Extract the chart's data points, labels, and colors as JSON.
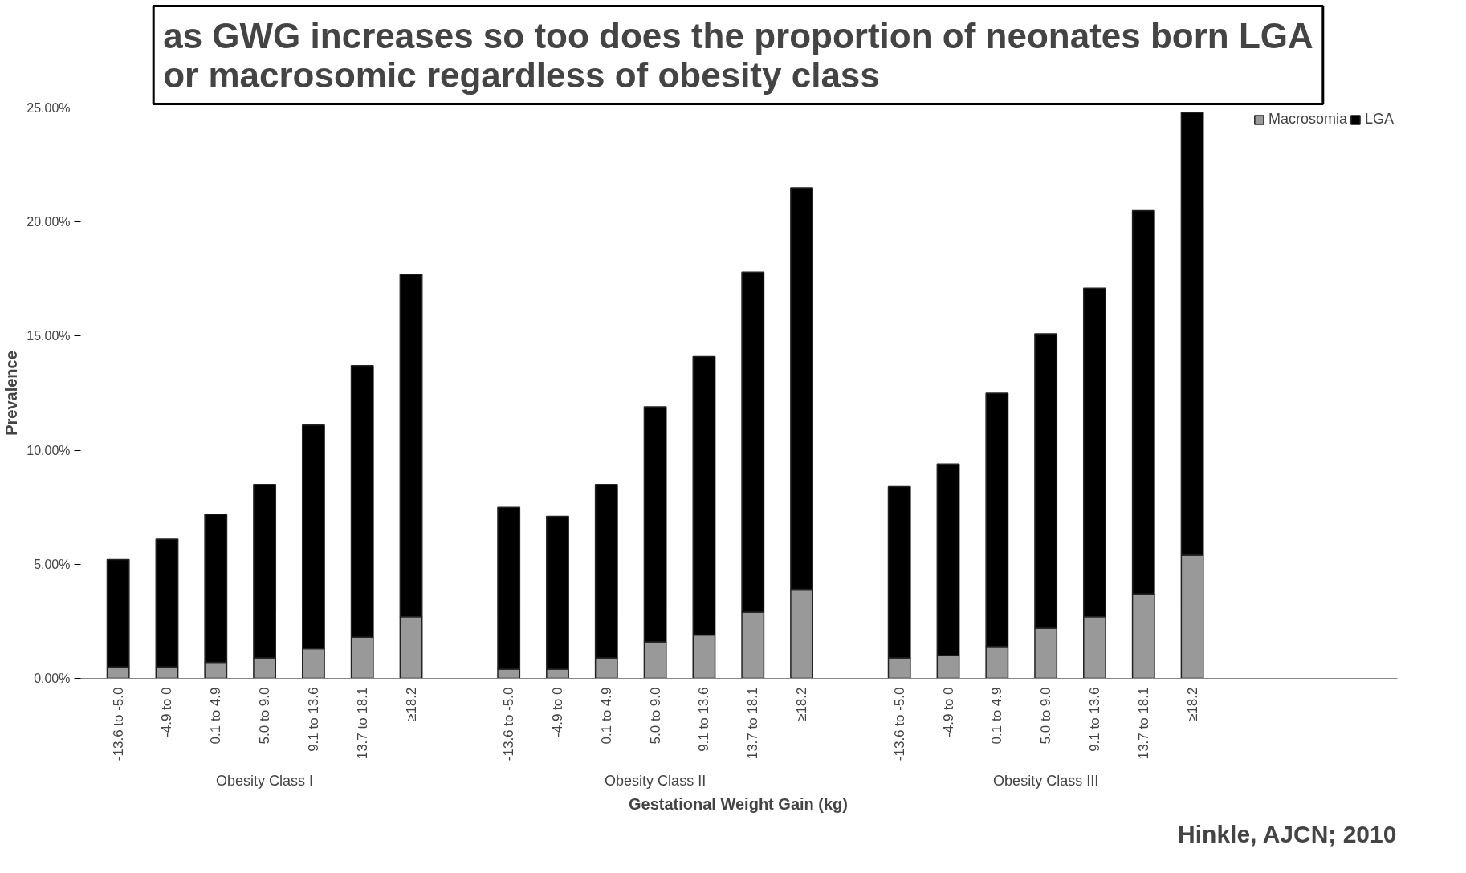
{
  "chart_data": {
    "type": "bar",
    "stacked": true,
    "title": "as GWG increases so too does the proportion of neonates born LGA\nor macrosomic regardless of obesity class",
    "xlabel": "Gestational Weight Gain (kg)",
    "ylabel": "Prevalence",
    "categories": [
      "-13.6 to -5.0",
      "-4.9 to 0",
      "0.1 to 4.9",
      "5.0 to 9.0",
      "9.1 to 13.6",
      "13.7 to 18.1",
      "≥18.2",
      null,
      "-13.6 to -5.0",
      "-4.9 to 0",
      "0.1 to 4.9",
      "5.0 to 9.0",
      "9.1 to 13.6",
      "13.7 to 18.1",
      "≥18.2",
      null,
      "-13.6 to -5.0",
      "-4.9 to 0",
      "0.1 to 4.9",
      "5.0 to 9.0",
      "9.1 to 13.6",
      "13.7 to 18.1",
      "≥18.2"
    ],
    "series": [
      {
        "name": "Macrosomia",
        "color": "#999999",
        "values": [
          0.5,
          0.5,
          0.7,
          0.9,
          1.3,
          1.8,
          2.7,
          null,
          0.4,
          0.4,
          0.9,
          1.6,
          1.9,
          2.9,
          3.9,
          null,
          0.9,
          1.0,
          1.4,
          2.2,
          2.7,
          3.7,
          5.4
        ]
      },
      {
        "name": "LGA",
        "color": "#000000",
        "values": [
          4.7,
          5.6,
          6.5,
          7.6,
          9.8,
          11.9,
          15.0,
          null,
          7.1,
          6.7,
          7.6,
          10.3,
          12.2,
          14.9,
          17.6,
          null,
          7.5,
          8.4,
          11.1,
          12.9,
          14.4,
          16.8,
          19.4
        ]
      }
    ],
    "ylim": [
      0,
      25
    ],
    "yticks": [
      {
        "value": 0,
        "label": "0.00%"
      },
      {
        "value": 5,
        "label": "5.00%"
      },
      {
        "value": 10,
        "label": "10.00%"
      },
      {
        "value": 15,
        "label": "15.00%"
      },
      {
        "value": 20,
        "label": "20.00%"
      },
      {
        "value": 25,
        "label": "25.00%"
      }
    ],
    "legend": "top right",
    "grid": false,
    "annotations": [
      "Obesity Class I",
      "Obesity Class II",
      "Obesity Class III",
      "Hinkle, AJCN; 2010"
    ]
  }
}
